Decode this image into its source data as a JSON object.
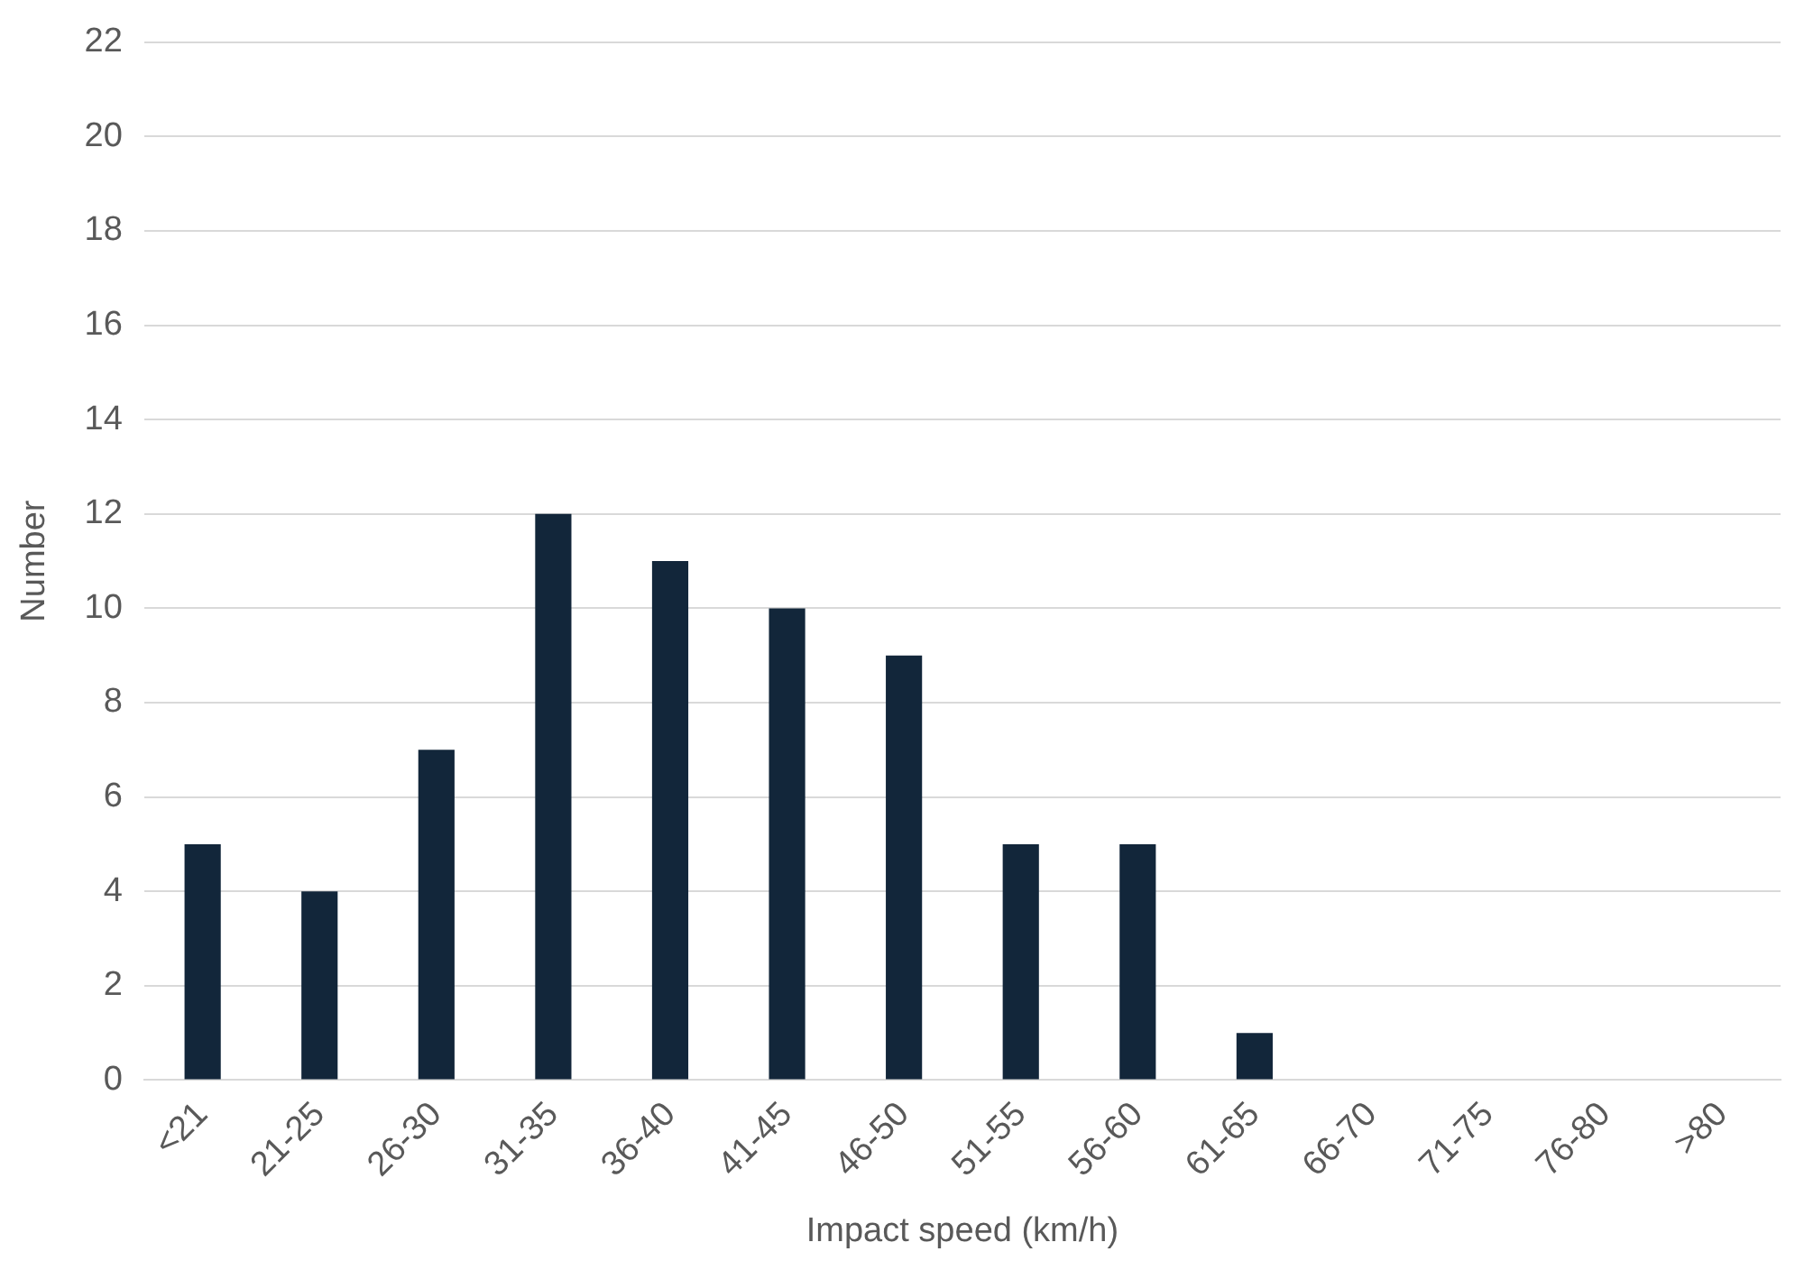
{
  "chart_data": {
    "type": "bar",
    "xlabel": "Impact speed (km/h)",
    "ylabel": "Number",
    "categories": [
      "<21",
      "21-25",
      "26-30",
      "31-35",
      "36-40",
      "41-45",
      "46-50",
      "51-55",
      "56-60",
      "61-65",
      "66-70",
      "71-75",
      "76-80",
      ">80"
    ],
    "values": [
      5,
      4,
      7,
      12,
      11,
      10,
      9,
      5,
      5,
      1,
      0,
      0,
      0,
      0
    ],
    "color": "#12263a",
    "ylim": [
      0,
      22
    ],
    "yticks": [
      0,
      2,
      4,
      6,
      8,
      10,
      12,
      14,
      16,
      18,
      20,
      22
    ],
    "grid": "y",
    "legend": false
  }
}
